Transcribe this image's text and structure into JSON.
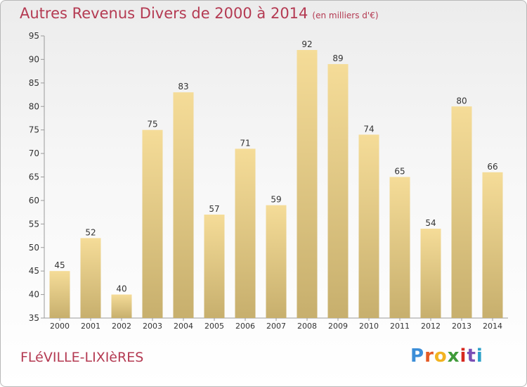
{
  "chart_data": {
    "type": "bar",
    "title": "Autres Revenus Divers de 2000 à 2014",
    "subtitle": "(en milliers d'€)",
    "categories": [
      "2000",
      "2001",
      "2002",
      "2003",
      "2004",
      "2005",
      "2006",
      "2007",
      "2008",
      "2009",
      "2010",
      "2011",
      "2012",
      "2013",
      "2014"
    ],
    "values": [
      45,
      52,
      40,
      75,
      83,
      57,
      71,
      59,
      92,
      89,
      74,
      65,
      54,
      80,
      66
    ],
    "ylim": [
      35,
      95
    ],
    "yticks": [
      35,
      40,
      45,
      50,
      55,
      60,
      65,
      70,
      75,
      80,
      85,
      90,
      95
    ],
    "grid": false,
    "xlabel": "",
    "ylabel": "",
    "colors": {
      "bar_light": "#f5dc98",
      "bar_dark": "#c7af6d",
      "title": "#b43a52",
      "axis": "#9a9a9a"
    }
  },
  "place_name": "FLéVILLE-LIXIèRES",
  "logo": {
    "letters": [
      "P",
      "r",
      "o",
      "x",
      "i",
      "t",
      "i"
    ],
    "colors": [
      "#3c8ed8",
      "#e45a25",
      "#f2b321",
      "#3f9b3a",
      "#d7281f",
      "#7a4fb5",
      "#2aa0c8"
    ]
  }
}
